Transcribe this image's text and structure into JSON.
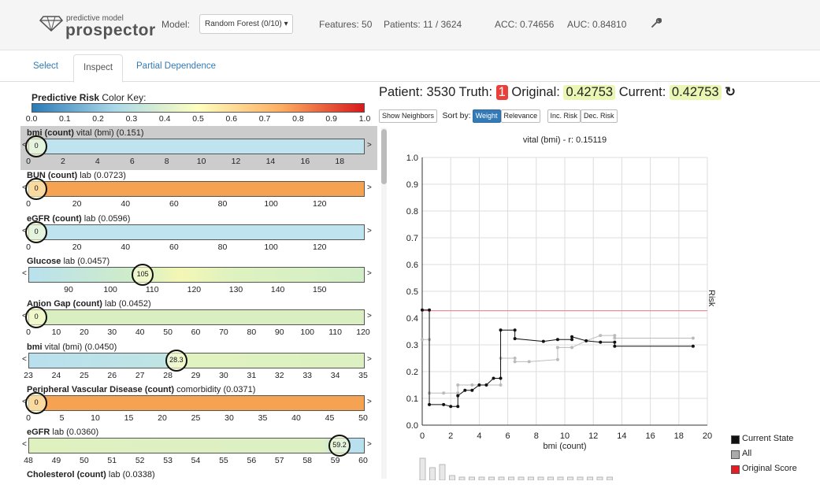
{
  "app": {
    "logo_small": "predictive model",
    "logo_big": "prospector"
  },
  "header": {
    "model_label": "Model:",
    "model_value": "Random Forest (0/10) ▾",
    "features": "Features: 50",
    "patients": "Patients: 11 / 3624",
    "acc": "ACC: 0.74656",
    "auc": "AUC: 0.84810"
  },
  "tabs": [
    "Select",
    "Inspect",
    "Partial Dependence"
  ],
  "color_key": {
    "title_bold": "Predictive Risk",
    "title_rest": " Color Key:",
    "ticks": [
      "0.0",
      "0.1",
      "0.2",
      "0.3",
      "0.4",
      "0.5",
      "0.6",
      "0.7",
      "0.8",
      "0.9",
      "1.0"
    ],
    "colors": [
      "#2c7bb6",
      "#abd9e9",
      "#ffffbf",
      "#fdae61",
      "#d7191c"
    ]
  },
  "features": [
    {
      "bold": "bmi (count)",
      "rest": " vital (bmi) (0.151)",
      "value": "0",
      "selected": true,
      "left_arrow": "<",
      "right_arrow": ">",
      "ticks": [
        "0",
        "2",
        "4",
        "6",
        "8",
        "10",
        "12",
        "14",
        "16",
        "18"
      ]
    },
    {
      "bold": "BUN (count)",
      "rest": " lab (0.0723)",
      "value": "0",
      "left_arrow": "<",
      "right_arrow": ">",
      "ticks": [
        "0",
        "20",
        "40",
        "60",
        "80",
        "100",
        "120"
      ]
    },
    {
      "bold": "eGFR (count)",
      "rest": " lab (0.0596)",
      "value": "0",
      "left_arrow": "<",
      "right_arrow": ">",
      "ticks": [
        "0",
        "20",
        "40",
        "60",
        "80",
        "100",
        "120"
      ]
    },
    {
      "bold": "Glucose",
      "rest": " lab (0.0457)",
      "value": "105",
      "left_arrow": "<",
      "right_arrow": ">",
      "ticks": [
        "90",
        "100",
        "110",
        "120",
        "130",
        "140",
        "150"
      ]
    },
    {
      "bold": "Anion Gap (count)",
      "rest": " lab (0.0452)",
      "value": "0",
      "left_arrow": "<",
      "right_arrow": ">",
      "ticks": [
        "0",
        "10",
        "20",
        "30",
        "40",
        "50",
        "60",
        "70",
        "80",
        "90",
        "100",
        "110",
        "120"
      ]
    },
    {
      "bold": "bmi",
      "rest": " vital (bmi) (0.0450)",
      "value": "28.3",
      "left_arrow": "<",
      "right_arrow": ">",
      "ticks": [
        "23",
        "24",
        "25",
        "26",
        "27",
        "28",
        "29",
        "30",
        "31",
        "32",
        "33",
        "34",
        "35"
      ]
    },
    {
      "bold": "Peripheral Vascular Disease (count)",
      "rest": " comorbidity (0.0371)",
      "value": "0",
      "left_arrow": "<",
      "right_arrow": ">",
      "ticks": [
        "0",
        "5",
        "10",
        "15",
        "20",
        "25",
        "30",
        "35",
        "40",
        "45",
        "50"
      ]
    },
    {
      "bold": "eGFR",
      "rest": " lab (0.0360)",
      "value": "59.2",
      "left_arrow": "<",
      "right_arrow": ">",
      "ticks": [
        "48",
        "49",
        "50",
        "51",
        "52",
        "53",
        "54",
        "55",
        "56",
        "57",
        "58",
        "59",
        "60"
      ]
    },
    {
      "bold": "Cholesterol (count)",
      "rest": " lab (0.0338)",
      "value": "",
      "left_arrow": "",
      "right_arrow": "",
      "ticks": []
    }
  ],
  "patient": {
    "label": "Patient: 3530",
    "truth_label": "Truth:",
    "truth_value": "1",
    "original_label": "Original:",
    "original_value": "0.42753",
    "current_label": "Current:",
    "current_value": "0.42753",
    "reset_icon": "↻",
    "truth_color": "#e8413c",
    "score_color": "#eaf7b4"
  },
  "toolbar": {
    "show_neighbors": "Show Neighbors",
    "sort_label": "Sort by:",
    "weight": "Weight",
    "relevance": "Relevance",
    "inc_risk": "Inc. Risk",
    "dec_risk": "Dec. Risk"
  },
  "chart_data": {
    "type": "line",
    "title": "vital (bmi) - r: 0.15119",
    "xlabel": "bmi (count)",
    "ylabel": "Risk",
    "xlim": [
      0,
      20
    ],
    "ylim": [
      0,
      1.0
    ],
    "xticks": [
      "0",
      "2",
      "4",
      "6",
      "8",
      "10",
      "12",
      "14",
      "16",
      "18",
      "20"
    ],
    "yticks": [
      "0.0",
      "0.1",
      "0.2",
      "0.3",
      "0.4",
      "0.5",
      "0.6",
      "0.7",
      "0.8",
      "0.9",
      "1.0"
    ],
    "grid": true,
    "original_score": 0.42753,
    "series": [
      {
        "name": "Current State",
        "color": "#000000",
        "x": [
          0,
          0.5,
          0.5,
          1.5,
          2,
          2.5,
          2.5,
          3,
          3.5,
          4,
          4.5,
          5,
          5.5,
          5.5,
          6.5,
          6.5,
          8.5,
          9.5,
          10.5,
          10.5,
          11.5,
          12.5,
          13.5,
          13.5,
          19
        ],
        "y": [
          0.43,
          0.43,
          0.077,
          0.077,
          0.07,
          0.07,
          0.11,
          0.13,
          0.13,
          0.15,
          0.15,
          0.175,
          0.175,
          0.355,
          0.355,
          0.323,
          0.313,
          0.32,
          0.32,
          0.33,
          0.315,
          0.31,
          0.31,
          0.295,
          0.295
        ]
      },
      {
        "name": "All",
        "color": "#aaaaaa",
        "x": [
          0,
          0.5,
          0.5,
          1.5,
          2.5,
          2.5,
          3.5,
          4.5,
          5.5,
          5.5,
          6.5,
          6.5,
          7.5,
          9.5,
          9.5,
          10.5,
          11.5,
          12.5,
          13.5,
          13.5,
          19
        ],
        "y": [
          0.32,
          0.32,
          0.12,
          0.12,
          0.12,
          0.15,
          0.15,
          0.15,
          0.15,
          0.25,
          0.25,
          0.237,
          0.237,
          0.245,
          0.29,
          0.29,
          0.315,
          0.335,
          0.335,
          0.325,
          0.325
        ]
      },
      {
        "name": "Original Score",
        "color": "#e51c23"
      }
    ],
    "histogram": [
      14,
      8,
      10,
      3,
      2,
      2,
      2,
      2,
      2,
      2,
      2,
      2,
      2,
      2,
      2,
      2,
      2,
      2,
      2,
      2
    ]
  }
}
